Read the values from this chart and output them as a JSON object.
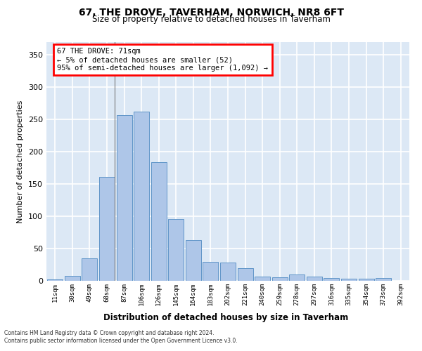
{
  "title": "67, THE DROVE, TAVERHAM, NORWICH, NR8 6FT",
  "subtitle": "Size of property relative to detached houses in Taverham",
  "xlabel": "Distribution of detached houses by size in Taverham",
  "ylabel": "Number of detached properties",
  "bar_color": "#aec6e8",
  "bar_edge_color": "#6096c8",
  "background_color": "#dce8f5",
  "grid_color": "#ffffff",
  "categories": [
    "11sqm",
    "30sqm",
    "49sqm",
    "68sqm",
    "87sqm",
    "106sqm",
    "126sqm",
    "145sqm",
    "164sqm",
    "183sqm",
    "202sqm",
    "221sqm",
    "240sqm",
    "259sqm",
    "278sqm",
    "297sqm",
    "316sqm",
    "335sqm",
    "354sqm",
    "373sqm",
    "392sqm"
  ],
  "values": [
    2,
    8,
    35,
    161,
    257,
    262,
    184,
    96,
    63,
    29,
    28,
    20,
    6,
    5,
    10,
    6,
    4,
    3,
    3,
    4,
    0
  ],
  "ylim": [
    0,
    370
  ],
  "yticks": [
    0,
    50,
    100,
    150,
    200,
    250,
    300,
    350
  ],
  "annotation_text_line1": "67 THE DROVE: 71sqm",
  "annotation_text_line2": "← 5% of detached houses are smaller (52)",
  "annotation_text_line3": "95% of semi-detached houses are larger (1,092) →",
  "property_bar_index": 3,
  "footnote1": "Contains HM Land Registry data © Crown copyright and database right 2024.",
  "footnote2": "Contains public sector information licensed under the Open Government Licence v3.0."
}
